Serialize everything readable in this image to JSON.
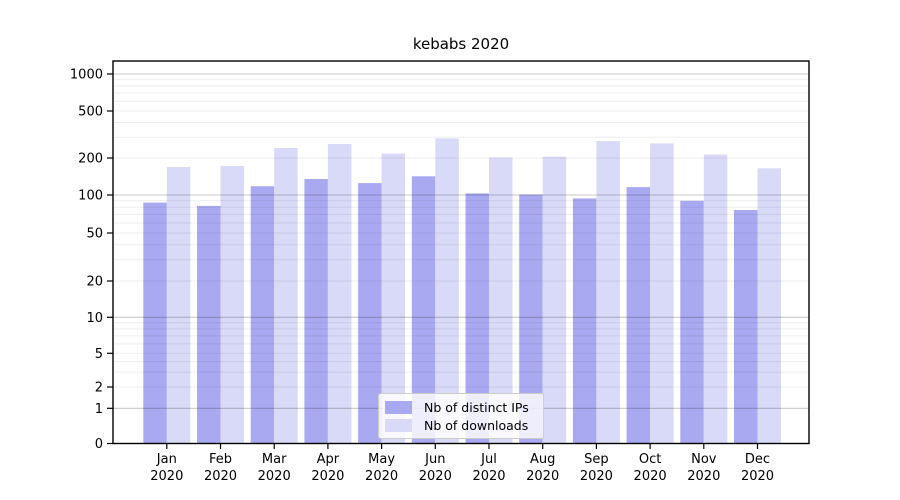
{
  "chart_data": {
    "type": "bar",
    "title": "kebabs 2020",
    "year_label": "2020",
    "categories": [
      "Jan",
      "Feb",
      "Mar",
      "Apr",
      "May",
      "Jun",
      "Jul",
      "Aug",
      "Sep",
      "Oct",
      "Nov",
      "Dec"
    ],
    "series": [
      {
        "name": "Nb of distinct IPs",
        "color": "#a9a9f2",
        "values": [
          87,
          82,
          118,
          135,
          125,
          142,
          103,
          101,
          94,
          116,
          90,
          76
        ]
      },
      {
        "name": "Nb of downloads",
        "color": "#d9d9f8",
        "values": [
          169,
          172,
          243,
          263,
          218,
          293,
          202,
          205,
          278,
          266,
          214,
          165
        ]
      }
    ],
    "yticks": [
      0,
      1,
      2,
      5,
      10,
      20,
      50,
      100,
      200,
      500,
      1000
    ],
    "yscale": "log-like (compressed near zero)",
    "ylim": [
      0,
      1276
    ],
    "grid": true,
    "legend_position": "lower center",
    "colors": {
      "major_gridline": "rgba(0,0,0,0.21)",
      "minor_gridline": "rgba(0,0,0,0.07)",
      "axis": "#000000",
      "text": "#000000"
    }
  }
}
